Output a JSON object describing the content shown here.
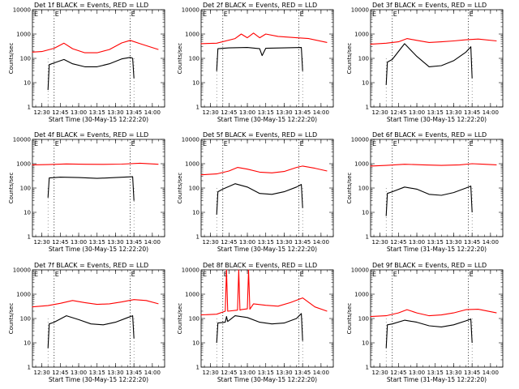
{
  "colors": {
    "events": "#000000",
    "lld": "#ff0000",
    "frame": "#000000"
  },
  "chart_data": [
    {
      "type": "line",
      "title": "Det 1f BLACK = Events, RED = LLD",
      "ylabel": "Counts/sec",
      "xlabel": "Start Time (30-May-15 12:22:20)",
      "yscale": "log",
      "ylim": [
        1,
        10000
      ],
      "xlim": [
        "12:22:20",
        "14:10"
      ],
      "xticks": [
        "12:30",
        "12:45",
        "13:00",
        "13:15",
        "13:30",
        "13:45",
        "14:00"
      ],
      "yticks": [
        "1",
        "10",
        "100",
        "1000",
        "10000"
      ],
      "markers": [
        {
          "time": "12:40",
          "label": "E"
        },
        {
          "time": "13:42",
          "label": "E"
        }
      ],
      "data_start": "12:35",
      "data_end": "13:45",
      "series": [
        {
          "color": "#000000",
          "x": [
            "12:35",
            "12:36",
            "12:40",
            "12:48",
            "12:55",
            "13:05",
            "13:15",
            "13:25",
            "13:35",
            "13:42",
            "13:44",
            "13:45"
          ],
          "y": [
            5,
            55,
            65,
            90,
            60,
            45,
            45,
            60,
            95,
            110,
            100,
            15
          ]
        },
        {
          "color": "#ff0000",
          "x": [
            "12:22",
            "12:30",
            "12:40",
            "12:48",
            "12:55",
            "13:05",
            "13:15",
            "13:25",
            "13:35",
            "13:42",
            "13:50",
            "14:05"
          ],
          "y": [
            180,
            190,
            260,
            420,
            250,
            170,
            170,
            230,
            430,
            550,
            400,
            230
          ]
        }
      ]
    },
    {
      "type": "line",
      "title": "Det 2f BLACK = Events, RED = LLD",
      "ylabel": "Counts/sec",
      "xlabel": "Start Time (30-May-15 12:22:20)",
      "yscale": "log",
      "ylim": [
        1,
        10000
      ],
      "xlim": [
        "12:22:20",
        "14:10"
      ],
      "xticks": [
        "12:30",
        "12:45",
        "13:00",
        "13:15",
        "13:30",
        "13:45",
        "14:00"
      ],
      "yticks": [
        "1",
        "10",
        "100",
        "1000",
        "10000"
      ],
      "markers": [
        {
          "time": "12:40",
          "label": "E"
        },
        {
          "time": "13:42",
          "label": "E"
        }
      ],
      "data_start": "12:35",
      "data_end": "13:45",
      "series": [
        {
          "color": "#000000",
          "x": [
            "12:35",
            "12:36",
            "12:45",
            "13:00",
            "13:10",
            "13:12",
            "13:15",
            "13:30",
            "13:44",
            "13:45"
          ],
          "y": [
            30,
            250,
            270,
            280,
            250,
            130,
            260,
            270,
            280,
            30
          ]
        },
        {
          "color": "#ff0000",
          "x": [
            "12:22",
            "12:35",
            "12:50",
            "12:55",
            "13:00",
            "13:05",
            "13:10",
            "13:15",
            "13:25",
            "13:40",
            "13:50",
            "14:05"
          ],
          "y": [
            400,
            420,
            650,
            1000,
            700,
            1100,
            700,
            1000,
            800,
            700,
            650,
            450
          ]
        }
      ]
    },
    {
      "type": "line",
      "title": "Det 3f BLACK = Events, RED = LLD",
      "ylabel": "Counts/sec",
      "xlabel": "Start Time (30-May-15 12:22:20)",
      "yscale": "log",
      "ylim": [
        1,
        10000
      ],
      "xlim": [
        "12:22:20",
        "14:10"
      ],
      "xticks": [
        "12:30",
        "12:45",
        "13:00",
        "13:15",
        "13:30",
        "13:45",
        "14:00"
      ],
      "yticks": [
        "1",
        "10",
        "100",
        "1000",
        "10000"
      ],
      "markers": [
        {
          "time": "12:40",
          "label": "E"
        },
        {
          "time": "13:42",
          "label": "E"
        }
      ],
      "data_start": "12:35",
      "data_end": "13:45",
      "series": [
        {
          "color": "#000000",
          "x": [
            "12:35",
            "12:36",
            "12:40",
            "12:50",
            "13:00",
            "13:10",
            "13:20",
            "13:30",
            "13:40",
            "13:44",
            "13:45"
          ],
          "y": [
            8,
            70,
            90,
            400,
            120,
            45,
            50,
            80,
            180,
            300,
            15
          ]
        },
        {
          "color": "#ff0000",
          "x": [
            "12:22",
            "12:35",
            "12:45",
            "12:52",
            "13:00",
            "13:10",
            "13:20",
            "13:30",
            "13:40",
            "13:50",
            "14:05"
          ],
          "y": [
            380,
            420,
            480,
            650,
            550,
            450,
            480,
            520,
            580,
            620,
            520
          ]
        }
      ]
    },
    {
      "type": "line",
      "title": "Det 4f BLACK = Events, RED = LLD",
      "ylabel": "Counts/sec",
      "xlabel": "Start Time (30-May-15 12:22:20)",
      "yscale": "log",
      "ylim": [
        1,
        10000
      ],
      "xlim": [
        "12:22:20",
        "14:10"
      ],
      "xticks": [
        "12:30",
        "12:45",
        "13:00",
        "13:15",
        "13:30",
        "13:45",
        "14:00"
      ],
      "yticks": [
        "1",
        "10",
        "100",
        "1000",
        "10000"
      ],
      "markers": [
        {
          "time": "12:40",
          "label": "E"
        },
        {
          "time": "13:42",
          "label": "E"
        }
      ],
      "data_start": "12:35",
      "data_end": "13:45",
      "series": [
        {
          "color": "#000000",
          "x": [
            "12:35",
            "12:36",
            "12:45",
            "13:00",
            "13:15",
            "13:30",
            "13:44",
            "13:45"
          ],
          "y": [
            40,
            260,
            280,
            270,
            250,
            270,
            290,
            30
          ]
        },
        {
          "color": "#ff0000",
          "x": [
            "12:22",
            "12:35",
            "12:50",
            "13:05",
            "13:20",
            "13:35",
            "13:50",
            "14:05"
          ],
          "y": [
            900,
            920,
            980,
            950,
            940,
            960,
            1050,
            950
          ]
        }
      ]
    },
    {
      "type": "line",
      "title": "Det 5f BLACK = Events, RED = LLD",
      "ylabel": "Counts/sec",
      "xlabel": "Start Time (30-May-15 12:22:20)",
      "yscale": "log",
      "ylim": [
        1,
        10000
      ],
      "xlim": [
        "12:22:20",
        "14:10"
      ],
      "xticks": [
        "12:30",
        "12:45",
        "13:00",
        "13:15",
        "13:30",
        "13:45",
        "14:00"
      ],
      "yticks": [
        "1",
        "10",
        "100",
        "1000",
        "10000"
      ],
      "markers": [
        {
          "time": "12:40",
          "label": "E"
        },
        {
          "time": "13:42",
          "label": "E"
        }
      ],
      "data_start": "12:35",
      "data_end": "13:45",
      "series": [
        {
          "color": "#000000",
          "x": [
            "12:35",
            "12:36",
            "12:40",
            "12:50",
            "13:00",
            "13:10",
            "13:20",
            "13:30",
            "13:40",
            "13:44",
            "13:45"
          ],
          "y": [
            8,
            70,
            90,
            150,
            110,
            60,
            55,
            70,
            110,
            140,
            15
          ]
        },
        {
          "color": "#ff0000",
          "x": [
            "12:22",
            "12:35",
            "12:45",
            "12:52",
            "13:00",
            "13:10",
            "13:20",
            "13:30",
            "13:40",
            "13:45",
            "13:55",
            "14:05"
          ],
          "y": [
            350,
            380,
            500,
            700,
            600,
            450,
            420,
            480,
            700,
            800,
            650,
            500
          ]
        }
      ]
    },
    {
      "type": "line",
      "title": "Det 6f BLACK = Events, RED = LLD",
      "ylabel": "Counts/sec",
      "xlabel": "Start Time (31-May-15 12:22:20)",
      "yscale": "log",
      "ylim": [
        1,
        10000
      ],
      "xlim": [
        "12:22:20",
        "14:10"
      ],
      "xticks": [
        "12:30",
        "12:45",
        "13:00",
        "13:15",
        "13:30",
        "13:45",
        "14:00"
      ],
      "yticks": [
        "1",
        "10",
        "100",
        "1000",
        "10000"
      ],
      "markers": [
        {
          "time": "12:40",
          "label": "E"
        },
        {
          "time": "13:42",
          "label": "E"
        }
      ],
      "data_start": "12:35",
      "data_end": "13:45",
      "series": [
        {
          "color": "#000000",
          "x": [
            "12:35",
            "12:36",
            "12:40",
            "12:50",
            "13:00",
            "13:10",
            "13:20",
            "13:30",
            "13:40",
            "13:44",
            "13:45"
          ],
          "y": [
            7,
            60,
            70,
            110,
            90,
            55,
            50,
            65,
            100,
            120,
            10
          ]
        },
        {
          "color": "#ff0000",
          "x": [
            "12:22",
            "12:35",
            "12:50",
            "13:05",
            "13:20",
            "13:35",
            "13:45",
            "13:55",
            "14:05"
          ],
          "y": [
            800,
            850,
            950,
            900,
            850,
            900,
            1000,
            950,
            900
          ]
        }
      ]
    },
    {
      "type": "line",
      "title": "Det 7f BLACK = Events, RED = LLD",
      "ylabel": "Counts/sec",
      "xlabel": "Start Time (30-May-15 12:22:20)",
      "yscale": "log",
      "ylim": [
        1,
        10000
      ],
      "xlim": [
        "12:22:20",
        "14:10"
      ],
      "xticks": [
        "12:30",
        "12:45",
        "13:00",
        "13:15",
        "13:30",
        "13:45",
        "14:00"
      ],
      "yticks": [
        "1",
        "10",
        "100",
        "1000",
        "10000"
      ],
      "markers": [
        {
          "time": "12:40",
          "label": "E"
        },
        {
          "time": "13:42",
          "label": "E"
        }
      ],
      "data_start": "12:35",
      "data_end": "13:45",
      "series": [
        {
          "color": "#000000",
          "x": [
            "12:35",
            "12:36",
            "12:40",
            "12:50",
            "13:00",
            "13:10",
            "13:20",
            "13:30",
            "13:40",
            "13:44",
            "13:45"
          ],
          "y": [
            6,
            60,
            70,
            130,
            90,
            60,
            55,
            70,
            110,
            130,
            15
          ]
        },
        {
          "color": "#ff0000",
          "x": [
            "12:22",
            "12:35",
            "12:45",
            "12:55",
            "13:05",
            "13:15",
            "13:25",
            "13:35",
            "13:45",
            "13:55",
            "14:05"
          ],
          "y": [
            300,
            340,
            420,
            550,
            450,
            380,
            400,
            480,
            600,
            550,
            400
          ]
        }
      ]
    },
    {
      "type": "line",
      "title": "Det 8f BLACK = Events, RED = LLD",
      "ylabel": "Counts/sec",
      "xlabel": "Start Time (30-May-15 12:22:20)",
      "yscale": "log",
      "ylim": [
        1,
        10000
      ],
      "xlim": [
        "12:22:20",
        "14:10"
      ],
      "xticks": [
        "12:30",
        "12:45",
        "13:00",
        "13:15",
        "13:30",
        "13:45",
        "14:00"
      ],
      "yticks": [
        "1",
        "10",
        "100",
        "1000",
        "10000"
      ],
      "markers": [
        {
          "time": "12:40",
          "label": "E"
        },
        {
          "time": "13:42",
          "label": "E"
        }
      ],
      "data_start": "12:35",
      "data_end": "13:45",
      "series": [
        {
          "color": "#000000",
          "x": [
            "12:35",
            "12:36",
            "12:42",
            "12:43",
            "12:44",
            "12:50",
            "13:00",
            "13:10",
            "13:20",
            "13:30",
            "13:40",
            "13:44",
            "13:45"
          ],
          "y": [
            10,
            65,
            70,
            120,
            75,
            130,
            110,
            70,
            60,
            65,
            100,
            160,
            12
          ]
        },
        {
          "color": "#ff0000",
          "x": [
            "12:22",
            "12:35",
            "12:42",
            "12:43",
            "12:44",
            "12:52",
            "12:53",
            "12:54",
            "12:55",
            "13:00",
            "13:01",
            "13:02",
            "13:05",
            "13:15",
            "13:25",
            "13:35",
            "13:45",
            "13:55",
            "14:05"
          ],
          "y": [
            140,
            150,
            200,
            10000,
            200,
            220,
            10000,
            220,
            230,
            250,
            10000,
            240,
            400,
            350,
            320,
            450,
            700,
            300,
            200
          ]
        }
      ]
    },
    {
      "type": "line",
      "title": "Det 9f BLACK = Events, RED = LLD",
      "ylabel": "Counts/sec",
      "xlabel": "Start Time (31-May-15 12:22:20)",
      "yscale": "log",
      "ylim": [
        1,
        10000
      ],
      "xlim": [
        "12:22:20",
        "14:10"
      ],
      "xticks": [
        "12:30",
        "12:45",
        "13:00",
        "13:15",
        "13:30",
        "13:45",
        "14:00"
      ],
      "yticks": [
        "1",
        "10",
        "100",
        "1000",
        "10000"
      ],
      "markers": [
        {
          "time": "12:40",
          "label": "E"
        },
        {
          "time": "13:42",
          "label": "E"
        }
      ],
      "data_start": "12:35",
      "data_end": "13:45",
      "series": [
        {
          "color": "#000000",
          "x": [
            "12:35",
            "12:36",
            "12:40",
            "12:50",
            "13:00",
            "13:10",
            "13:20",
            "13:30",
            "13:40",
            "13:44",
            "13:45"
          ],
          "y": [
            6,
            55,
            60,
            85,
            70,
            50,
            45,
            55,
            80,
            95,
            10
          ]
        },
        {
          "color": "#ff0000",
          "x": [
            "12:22",
            "12:35",
            "12:45",
            "12:52",
            "13:00",
            "13:10",
            "13:20",
            "13:30",
            "13:40",
            "13:50",
            "14:05"
          ],
          "y": [
            120,
            130,
            170,
            230,
            170,
            130,
            140,
            170,
            230,
            240,
            170
          ]
        }
      ]
    }
  ]
}
